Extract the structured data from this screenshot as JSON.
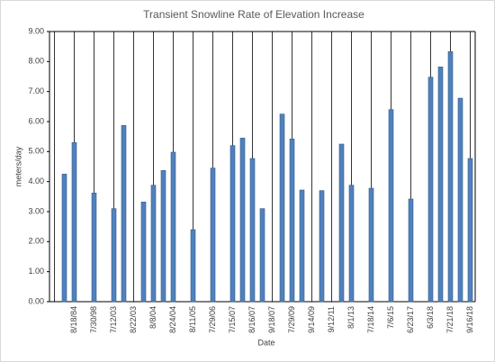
{
  "chart_data": {
    "type": "bar",
    "title": "Transient Snowline Rate of Elevation Increase",
    "x_label": "Date",
    "y_label": "meters/day",
    "categories": [
      null,
      null,
      "8/18/84",
      null,
      "7/30/98",
      null,
      "7/12/03",
      null,
      "8/22/03",
      null,
      "8/8/04",
      null,
      "8/24/04",
      null,
      "8/11/05",
      null,
      "7/29/06",
      null,
      "7/15/07",
      null,
      "8/16/07",
      null,
      "9/18/07",
      null,
      "7/29/09",
      null,
      "9/14/09",
      null,
      "9/12/11",
      null,
      "8/1/13",
      null,
      "7/18/14",
      null,
      "7/6/15",
      null,
      "6/23/17",
      null,
      "6/3/18",
      null,
      "7/21/18",
      null,
      "9/16/18"
    ],
    "values": [
      null,
      4.25,
      5.3,
      null,
      3.62,
      null,
      3.1,
      5.87,
      null,
      3.32,
      3.88,
      4.37,
      4.98,
      null,
      2.4,
      null,
      4.45,
      null,
      5.2,
      5.45,
      4.77,
      3.1,
      null,
      6.25,
      5.42,
      3.72,
      null,
      3.7,
      null,
      5.25,
      3.88,
      null,
      3.78,
      null,
      6.4,
      null,
      3.42,
      null,
      7.48,
      7.82,
      8.33,
      6.78,
      4.77
    ],
    "color": "#4f81bd",
    "ylim": [
      0,
      9
    ],
    "yticks": [
      {
        "value": 0,
        "label": "0.00"
      },
      {
        "value": 1,
        "label": "1.00"
      },
      {
        "value": 2,
        "label": "2.00"
      },
      {
        "value": 3,
        "label": "3.00"
      },
      {
        "value": 4,
        "label": "4.00"
      },
      {
        "value": 5,
        "label": "5.00"
      },
      {
        "value": 6,
        "label": "6.00"
      },
      {
        "value": 7,
        "label": "7.00"
      },
      {
        "value": 8,
        "label": "8.00"
      },
      {
        "value": 9,
        "label": "9.00"
      }
    ],
    "xgrid": true
  }
}
